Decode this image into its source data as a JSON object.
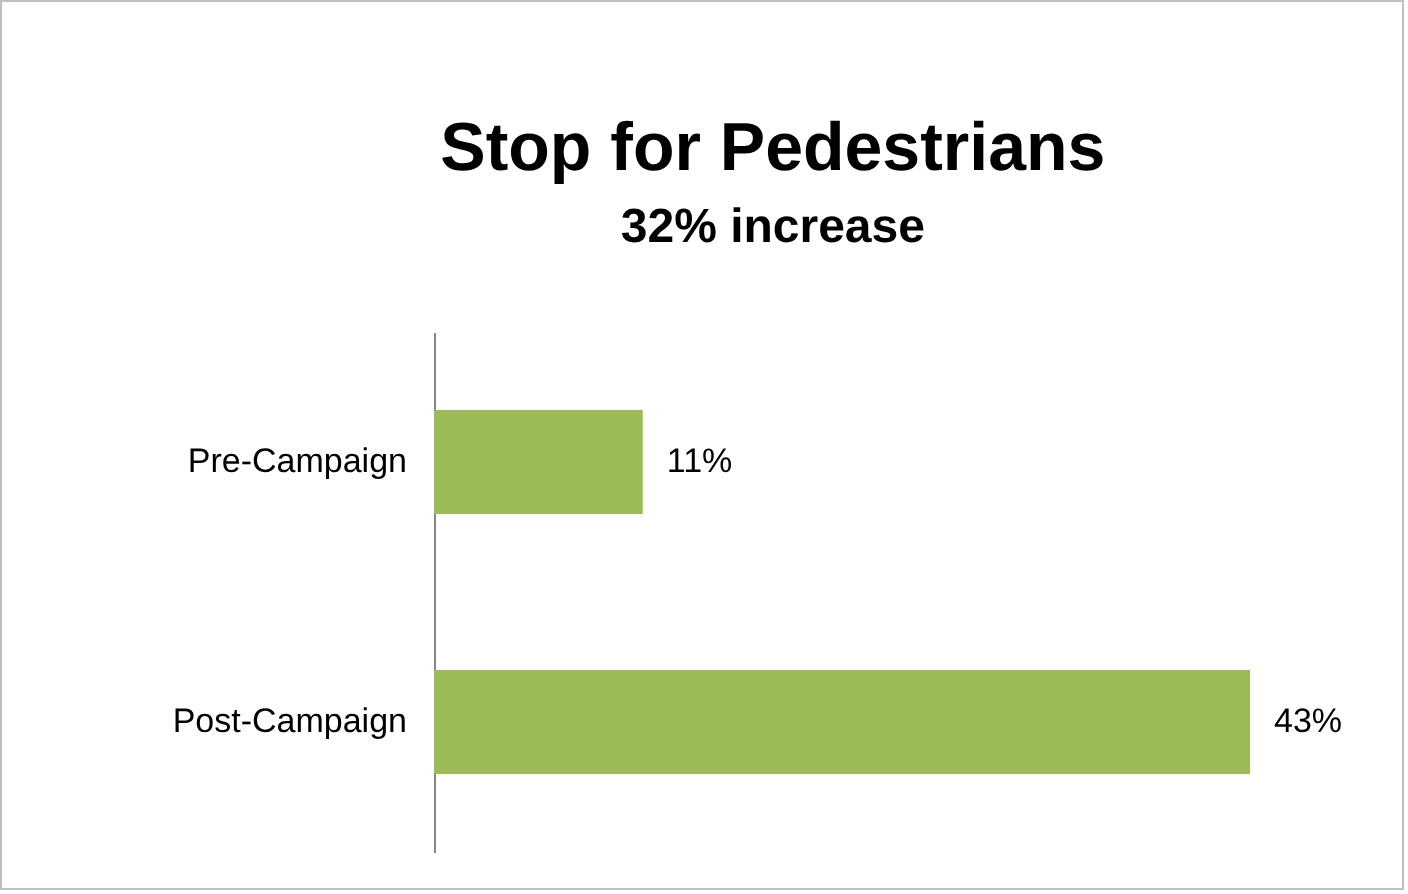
{
  "chart_data": {
    "type": "bar",
    "orientation": "horizontal",
    "title": "Stop for Pedestrians",
    "subtitle": "32% increase",
    "categories": [
      "Pre-Campaign",
      "Post-Campaign"
    ],
    "values": [
      11,
      43
    ],
    "value_labels": [
      "11%",
      "43%"
    ],
    "color": "#9bbb59"
  }
}
